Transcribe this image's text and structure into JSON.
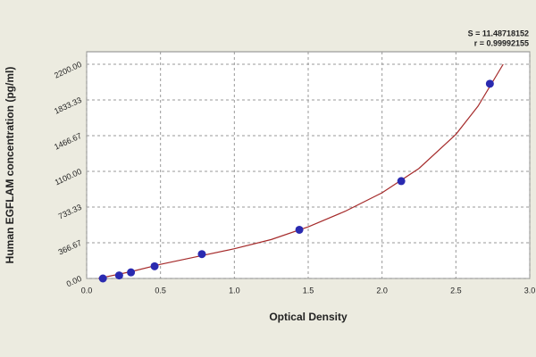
{
  "chart_data": {
    "type": "scatter",
    "x_label": "Optical Density",
    "y_label": "Human EGFLAM concentration (pg/ml)",
    "annotations": [
      "S = 11.48718152",
      "r = 0.99992155"
    ],
    "x": [
      0.11,
      0.22,
      0.3,
      0.46,
      0.78,
      1.44,
      2.13,
      2.73
    ],
    "values": [
      0,
      31.25,
      62.5,
      125,
      250,
      500,
      1000,
      2000
    ],
    "color": "#2a2ab0",
    "curve": {
      "x": [
        0.08,
        0.3,
        0.5,
        0.75,
        1.0,
        1.25,
        1.5,
        1.75,
        2.0,
        2.25,
        2.5,
        2.65,
        2.82
      ],
      "values": [
        0,
        70,
        145,
        225,
        305,
        400,
        530,
        690,
        880,
        1130,
        1480,
        1770,
        2200
      ],
      "color": "#a52a2a"
    },
    "xlim": [
      0,
      3
    ],
    "ylim": [
      0,
      2200
    ],
    "xticks": [
      {
        "value": 0,
        "label": "0.0"
      },
      0.5,
      {
        "value": 1,
        "label": "1.0"
      },
      1.5,
      {
        "value": 2,
        "label": "2.0"
      },
      2.5,
      {
        "value": 3,
        "label": "3.0"
      }
    ],
    "yticks": [
      {
        "value": 0,
        "label": "0.00"
      },
      366.67,
      733.33,
      {
        "value": 1100,
        "label": "1100.00"
      },
      1466.67,
      1833.33,
      {
        "value": 2200,
        "label": "2200.00"
      }
    ],
    "grid": true
  }
}
